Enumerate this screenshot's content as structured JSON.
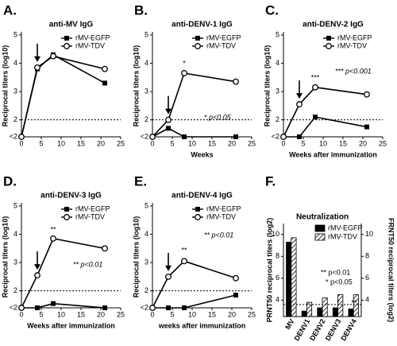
{
  "chart_data": [
    {
      "type": "line",
      "panel": "A.",
      "title": "anti-MV IgG",
      "y_label": "Reciprocal titers (log10)",
      "x": [
        0,
        4,
        8,
        21
      ],
      "xlim": [
        0,
        25
      ],
      "xticks": [
        0,
        5,
        10,
        15,
        20,
        25
      ],
      "ylim": [
        1.4,
        5
      ],
      "yticks": [
        {
          "value": 1.4,
          "label": "<2"
        },
        2,
        3,
        4,
        5
      ],
      "ref_line": 2,
      "arrow_x": 4,
      "legend": "upper right",
      "series": [
        {
          "name": "rMV-EGFP",
          "color": "#000000",
          "marker": "square",
          "values": [
            1.4,
            3.8,
            4.3,
            3.3
          ]
        },
        {
          "name": "rMV-TDV",
          "color": "#000000",
          "marker": "circle",
          "values": [
            1.4,
            3.85,
            4.25,
            3.8
          ]
        }
      ],
      "annotations": []
    },
    {
      "type": "line",
      "panel": "B.",
      "title": "anti-DENV-1 IgG",
      "y_label": "Reciprocal titers (log10)",
      "x_label": "Weeks",
      "x": [
        0,
        4,
        8,
        21
      ],
      "xlim": [
        0,
        25
      ],
      "xticks": [
        0,
        5,
        10,
        15,
        20,
        25
      ],
      "ylim": [
        1.4,
        5
      ],
      "yticks": [
        {
          "value": 1.4,
          "label": "<2"
        },
        2,
        3,
        4,
        5
      ],
      "ref_line": 2,
      "arrow_x": 4,
      "legend": "upper right",
      "series": [
        {
          "name": "rMV-EGFP",
          "color": "#000000",
          "marker": "square",
          "values": [
            1.4,
            1.7,
            1.4,
            1.4
          ]
        },
        {
          "name": "rMV-TDV",
          "color": "#000000",
          "marker": "circle",
          "values": [
            1.4,
            2.0,
            3.65,
            3.35
          ]
        }
      ],
      "annotations": [
        "*",
        "* p<0.05"
      ]
    },
    {
      "type": "line",
      "panel": "C.",
      "title": "anti-DENV-2 IgG",
      "y_label": "Reciprocal titers (log10)",
      "x_label": "Weeks after immunization",
      "x": [
        0,
        4,
        8,
        21
      ],
      "xlim": [
        0,
        25
      ],
      "xticks": [
        0,
        5,
        10,
        15,
        20,
        25
      ],
      "ylim": [
        1.4,
        5
      ],
      "yticks": [
        {
          "value": 1.4,
          "label": "<2"
        },
        2,
        3,
        4,
        5
      ],
      "ref_line": 2,
      "arrow_x": 4,
      "legend": "upper right",
      "series": [
        {
          "name": "rMV-EGFP",
          "color": "#000000",
          "marker": "square",
          "values": [
            1.4,
            1.4,
            2.1,
            1.75
          ]
        },
        {
          "name": "rMV-TDV",
          "color": "#000000",
          "marker": "circle",
          "values": [
            1.4,
            2.55,
            3.15,
            2.9
          ]
        }
      ],
      "annotations": [
        "***",
        "*** p<0.001"
      ]
    },
    {
      "type": "line",
      "panel": "D.",
      "title": "anti-DENV-3 IgG",
      "y_label": "Reciprocal titers (log10)",
      "x_label": "Weeks after immunization",
      "x": [
        0,
        4,
        8,
        21
      ],
      "xlim": [
        0,
        25
      ],
      "xticks": [
        0,
        5,
        10,
        15,
        20,
        25
      ],
      "ylim": [
        1.4,
        5
      ],
      "yticks": [
        {
          "value": 1.4,
          "label": "<2"
        },
        2,
        3,
        4,
        5
      ],
      "ref_line": 2,
      "arrow_x": 4,
      "legend": "upper right",
      "series": [
        {
          "name": "rMV-EGFP",
          "color": "#000000",
          "marker": "square",
          "values": [
            1.4,
            1.4,
            1.55,
            1.4
          ]
        },
        {
          "name": "rMV-TDV",
          "color": "#000000",
          "marker": "circle",
          "values": [
            1.4,
            2.55,
            3.85,
            3.5
          ]
        }
      ],
      "annotations": [
        "**",
        "** p<0.01"
      ]
    },
    {
      "type": "line",
      "panel": "E.",
      "title": "anti-DENV-4 IgG",
      "y_label": "Reciprocal titers (log10)",
      "x_label": "weeks after immunization",
      "x": [
        0,
        4,
        8,
        21
      ],
      "xlim": [
        0,
        25
      ],
      "xticks": [
        0,
        5,
        10,
        15,
        20,
        25
      ],
      "ylim": [
        1.4,
        5
      ],
      "yticks": [
        {
          "value": 1.4,
          "label": "<2"
        },
        2,
        3,
        4,
        5
      ],
      "ref_line": 2,
      "arrow_x": 4,
      "legend": "upper right",
      "series": [
        {
          "name": "rMV-EGFP",
          "color": "#000000",
          "marker": "square",
          "values": [
            1.4,
            1.4,
            1.4,
            1.85
          ]
        },
        {
          "name": "rMV-TDV",
          "color": "#000000",
          "marker": "circle",
          "values": [
            1.4,
            2.5,
            3.05,
            2.45
          ]
        }
      ],
      "annotations": [
        "**",
        "** p<0.01"
      ]
    },
    {
      "type": "bar",
      "panel": "F.",
      "title": "Neutralization",
      "y_label": "PRNT50 reciprocal titers (log2)",
      "y2_label": "FRNT50 reciprocal titers (log2)",
      "categories": [
        "MV",
        "DENV1",
        "DENV2",
        "DENV3",
        "DENV4"
      ],
      "category_axis": [
        "y",
        "y2",
        "y2",
        "y2",
        "y2"
      ],
      "ylim": [
        2.5,
        11
      ],
      "yticks": [
        4,
        6,
        8,
        10
      ],
      "y2lim": [
        2.5,
        11
      ],
      "y2ticks": [
        4,
        6,
        8,
        10
      ],
      "ref_line": 3.6,
      "legend": "upper right",
      "series": [
        {
          "name": "rMV-EGFP",
          "color": "#000000",
          "hatch": false,
          "values": [
            9.3,
            3.0,
            3.3,
            3.3,
            3.2
          ]
        },
        {
          "name": "rMV-TDV",
          "color": "#000000",
          "hatch": true,
          "values": [
            9.7,
            3.8,
            4.2,
            4.5,
            4.5
          ]
        }
      ],
      "annotations": [
        "*",
        "**",
        "** p<0.01",
        "* p<0.05"
      ]
    }
  ]
}
